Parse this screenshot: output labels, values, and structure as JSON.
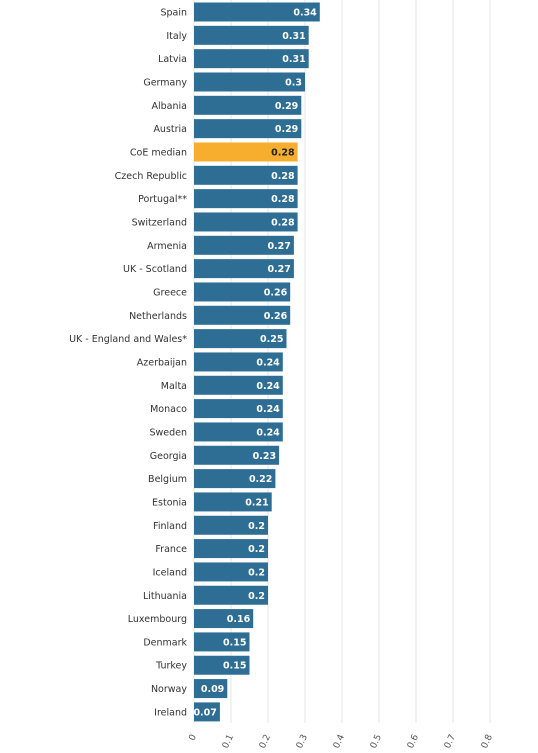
{
  "chart_data": {
    "type": "bar",
    "orientation": "horizontal",
    "categories": [
      "Spain",
      "Italy",
      "Latvia",
      "Germany",
      "Albania",
      "Austria",
      "CoE median",
      "Czech Republic",
      "Portugal**",
      "Switzerland",
      "Armenia",
      "UK - Scotland",
      "Greece",
      "Netherlands",
      "UK - England and Wales*",
      "Azerbaijan",
      "Malta",
      "Monaco",
      "Sweden",
      "Georgia",
      "Belgium",
      "Estonia",
      "Finland",
      "France",
      "Iceland",
      "Lithuania",
      "Luxembourg",
      "Denmark",
      "Turkey",
      "Norway",
      "Ireland"
    ],
    "values": [
      0.34,
      0.31,
      0.31,
      0.3,
      0.29,
      0.29,
      0.28,
      0.28,
      0.28,
      0.28,
      0.27,
      0.27,
      0.26,
      0.26,
      0.25,
      0.24,
      0.24,
      0.24,
      0.24,
      0.23,
      0.22,
      0.21,
      0.2,
      0.2,
      0.2,
      0.2,
      0.16,
      0.15,
      0.15,
      0.09,
      0.07
    ],
    "colors": [
      "#2e6e95",
      "#2e6e95",
      "#2e6e95",
      "#2e6e95",
      "#2e6e95",
      "#2e6e95",
      "#f7ae2f",
      "#2e6e95",
      "#2e6e95",
      "#2e6e95",
      "#2e6e95",
      "#2e6e95",
      "#2e6e95",
      "#2e6e95",
      "#2e6e95",
      "#2e6e95",
      "#2e6e95",
      "#2e6e95",
      "#2e6e95",
      "#2e6e95",
      "#2e6e95",
      "#2e6e95",
      "#2e6e95",
      "#2e6e95",
      "#2e6e95",
      "#2e6e95",
      "#2e6e95",
      "#2e6e95",
      "#2e6e95",
      "#2e6e95",
      "#2e6e95"
    ],
    "xlim": [
      0,
      0.8
    ],
    "xticks": [
      0,
      0.1,
      0.2,
      0.3,
      0.4,
      0.5,
      0.6,
      0.7,
      0.8
    ],
    "grid": true
  }
}
